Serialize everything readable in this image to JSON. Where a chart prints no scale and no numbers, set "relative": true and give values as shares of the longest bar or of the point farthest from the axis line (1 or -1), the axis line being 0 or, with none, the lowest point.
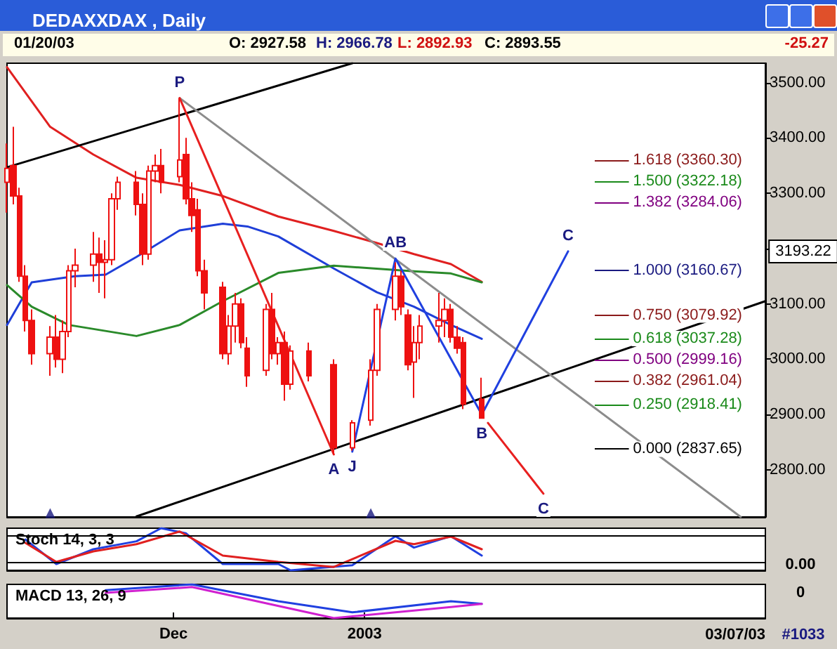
{
  "chart_data": [
    {
      "type": "candlestick",
      "title": "DEDAXXDAX , Daily",
      "x": [
        "2002-11-04",
        "2002-11-05",
        "2002-11-06",
        "2002-11-07",
        "2002-11-08",
        "2002-11-11",
        "2002-11-12",
        "2002-11-13",
        "2002-11-14",
        "2002-11-15",
        "2002-11-18",
        "2002-11-19",
        "2002-11-20",
        "2002-11-21",
        "2002-11-22",
        "2002-11-25",
        "2002-11-26",
        "2002-11-27",
        "2002-11-28",
        "2002-11-29",
        "2002-12-02",
        "2002-12-03",
        "2002-12-04",
        "2002-12-05",
        "2002-12-06",
        "2002-12-09",
        "2002-12-10",
        "2002-12-11",
        "2002-12-12",
        "2002-12-13",
        "2002-12-16",
        "2002-12-17",
        "2002-12-18",
        "2002-12-19",
        "2002-12-20",
        "2002-12-23",
        "2002-12-27",
        "2002-12-30",
        "2003-01-02",
        "2003-01-03",
        "2003-01-06",
        "2003-01-07",
        "2003-01-08",
        "2003-01-09",
        "2003-01-10",
        "2003-01-13",
        "2003-01-14",
        "2003-01-15",
        "2003-01-16",
        "2003-01-17",
        "2003-01-20"
      ],
      "ohlc": [
        [
          3320,
          3390,
          3265,
          3345
        ],
        [
          3350,
          3420,
          3280,
          3295
        ],
        [
          3295,
          3310,
          3140,
          3150
        ],
        [
          3150,
          3170,
          3050,
          3070
        ],
        [
          3070,
          3090,
          2990,
          3010
        ],
        [
          3010,
          3060,
          2970,
          3040
        ],
        [
          3040,
          3080,
          2985,
          3000
        ],
        [
          3000,
          3070,
          2975,
          3050
        ],
        [
          3050,
          3170,
          3040,
          3160
        ],
        [
          3160,
          3200,
          3130,
          3170
        ],
        [
          3170,
          3230,
          3140,
          3190
        ],
        [
          3190,
          3220,
          3120,
          3175
        ],
        [
          3175,
          3215,
          3110,
          3180
        ],
        [
          3180,
          3300,
          3170,
          3290
        ],
        [
          3290,
          3330,
          3270,
          3320
        ],
        [
          3320,
          3340,
          3260,
          3280
        ],
        [
          3280,
          3300,
          3170,
          3190
        ],
        [
          3190,
          3350,
          3180,
          3340
        ],
        [
          3340,
          3370,
          3320,
          3350
        ],
        [
          3350,
          3380,
          3300,
          3320
        ],
        [
          3330,
          3472,
          3320,
          3360
        ],
        [
          3370,
          3400,
          3280,
          3290
        ],
        [
          3290,
          3320,
          3230,
          3260
        ],
        [
          3270,
          3290,
          3150,
          3160
        ],
        [
          3160,
          3180,
          3090,
          3120
        ],
        [
          3130,
          3140,
          3000,
          3010
        ],
        [
          3010,
          3080,
          2990,
          3060
        ],
        [
          3060,
          3120,
          3030,
          3100
        ],
        [
          3100,
          3110,
          3020,
          3030
        ],
        [
          3020,
          3040,
          2950,
          2970
        ],
        [
          2980,
          3100,
          2970,
          3090
        ],
        [
          3090,
          3120,
          3000,
          3010
        ],
        [
          3010,
          3040,
          2990,
          3030
        ],
        [
          3030,
          3050,
          2925,
          2955
        ],
        [
          2955,
          3025,
          2945,
          3015
        ],
        [
          3015,
          3030,
          2960,
          2970
        ],
        [
          2990,
          3000,
          2828,
          2840
        ],
        [
          2840,
          2890,
          2835,
          2885
        ],
        [
          2890,
          3000,
          2880,
          2980
        ],
        [
          2980,
          3100,
          2970,
          3090
        ],
        [
          3090,
          3175,
          3070,
          3150
        ],
        [
          3150,
          3160,
          3080,
          3095
        ],
        [
          3080,
          3090,
          2980,
          2990
        ],
        [
          2995,
          3060,
          2930,
          3030
        ],
        [
          3030,
          3080,
          3000,
          3060
        ],
        [
          3060,
          3120,
          3030,
          3070
        ],
        [
          3070,
          3110,
          3040,
          3090
        ],
        [
          3090,
          3100,
          3030,
          3040
        ],
        [
          3040,
          3060,
          3010,
          3020
        ],
        [
          3030,
          3040,
          2910,
          2919
        ],
        [
          2927.58,
          2966.78,
          2892.93,
          2893.55
        ]
      ],
      "color": "#ee1111",
      "series": [
        {
          "type": "line",
          "color": "#e02020",
          "x": [
            "2002-11-04",
            "2002-11-11",
            "2002-11-18",
            "2002-11-25",
            "2002-12-02",
            "2002-12-09",
            "2002-12-18",
            "2002-12-27",
            "2003-01-03",
            "2003-01-09",
            "2003-01-15",
            "2003-01-20"
          ],
          "values": [
            3528,
            3420,
            3370,
            3328,
            3315,
            3295,
            3258,
            3232,
            3210,
            3190,
            3172,
            3140
          ]
        },
        {
          "type": "line",
          "color": "#1f3fd8",
          "x": [
            "2002-11-04",
            "2002-11-08",
            "2002-11-15",
            "2002-11-20",
            "2002-11-25",
            "2002-12-02",
            "2002-12-09",
            "2002-12-13",
            "2002-12-18",
            "2002-12-27",
            "2003-01-03",
            "2003-01-09",
            "2003-01-15",
            "2003-01-20"
          ],
          "values": [
            3062,
            3139,
            3150,
            3153,
            3185,
            3233,
            3245,
            3240,
            3222,
            3164,
            3121,
            3095,
            3062,
            3037
          ]
        },
        {
          "type": "line",
          "color": "#2a8a2a",
          "x": [
            "2002-11-04",
            "2002-11-08",
            "2002-11-14",
            "2002-11-25",
            "2002-12-02",
            "2002-12-09",
            "2002-12-18",
            "2002-12-27",
            "2003-01-09",
            "2003-01-15",
            "2003-01-20"
          ],
          "values": [
            3134,
            3095,
            3062,
            3042,
            3062,
            3105,
            3156,
            3169,
            3159,
            3155,
            3139
          ]
        },
        {
          "type": "line",
          "color": "#000000",
          "x": [
            "2002-11-04",
            "2002-12-30"
          ],
          "values": [
            3347,
            3535
          ]
        },
        {
          "type": "line",
          "color": "#000000",
          "x": [
            "2002-11-25",
            "2003-03-07"
          ],
          "values": [
            2716,
            3105
          ]
        },
        {
          "type": "line",
          "color": "#8c8c8c",
          "x": [
            "2002-12-02",
            "2003-03-03"
          ],
          "values": [
            3472,
            2715
          ]
        },
        {
          "type": "line",
          "color": "#e82020",
          "x": [
            "2002-12-02",
            "2002-12-27"
          ],
          "values": [
            3472,
            2828
          ]
        },
        {
          "type": "line",
          "color": "#e82020",
          "x": [
            "2003-01-21",
            "2003-01-30"
          ],
          "values": [
            2885,
            2757
          ]
        },
        {
          "type": "line",
          "color": "#2040e0",
          "x": [
            "2002-12-30",
            "2003-01-06",
            "2003-01-20",
            "2003-02-03"
          ],
          "values": [
            2833,
            3182,
            2900,
            3195
          ]
        },
        {
          "type": "scatter",
          "marker": "triangle",
          "color": "#1a1a80",
          "x": [
            "2002-11-11",
            "2003-01-02"
          ],
          "values": [
            2722,
            2722
          ]
        }
      ],
      "xlim": [
        "2002-11-04",
        "2003-03-07"
      ],
      "ylim": [
        2715,
        3535
      ],
      "yticks": [
        {
          "value": 2800,
          "label": "2800.00"
        },
        {
          "value": 2900,
          "label": "2900.00"
        },
        {
          "value": 3000,
          "label": "3000.00"
        },
        {
          "value": 3100,
          "label": "3100.00"
        },
        {
          "value": 3200,
          "label": null
        },
        {
          "value": 3300,
          "label": "3300.00"
        },
        {
          "value": 3400,
          "label": "3400.00"
        },
        {
          "value": 3500,
          "label": "3500.00"
        }
      ],
      "tick_labels": "y",
      "ref_lines": [
        {
          "axis": "y",
          "value": 3360.3,
          "label": "1.618 (3360.30)",
          "color": "#8b1a1a"
        },
        {
          "axis": "y",
          "value": 3322.18,
          "label": "1.500 (3322.18)",
          "color": "#1a8a1a"
        },
        {
          "axis": "y",
          "value": 3284.06,
          "label": "1.382 (3284.06)",
          "color": "#800080"
        },
        {
          "axis": "y",
          "value": 3160.67,
          "label": "1.000 (3160.67)",
          "color": "#1a1a80"
        },
        {
          "axis": "y",
          "value": 3079.92,
          "label": "0.750 (3079.92)",
          "color": "#8b1a1a"
        },
        {
          "axis": "y",
          "value": 3037.28,
          "label": "0.618 (3037.28)",
          "color": "#1a8a1a"
        },
        {
          "axis": "y",
          "value": 2999.16,
          "label": "0.500 (2999.16)",
          "color": "#800080"
        },
        {
          "axis": "y",
          "value": 2961.04,
          "label": "0.382 (2961.04)",
          "color": "#8b1a1a"
        },
        {
          "axis": "y",
          "value": 2918.41,
          "label": "0.250 (2918.41)",
          "color": "#1a8a1a"
        },
        {
          "axis": "y",
          "value": 2837.65,
          "label": "0.000 (2837.65)",
          "color": "#000000"
        }
      ],
      "annotations": [
        "01/20/03",
        "O: 2927.58",
        "H: 2966.78",
        "L: 2892.93",
        "C: 2893.55",
        "-25.27",
        "3193.22",
        {
          "text": "P",
          "x": "2002-12-02",
          "y": 3472
        },
        {
          "text": "A",
          "x": "2002-12-27",
          "y": 2828
        },
        {
          "text": "J",
          "x": "2002-12-30",
          "y": 2833
        },
        {
          "text": "AB",
          "x": "2003-01-06",
          "y": 3182
        },
        {
          "text": "B",
          "x": "2003-01-20",
          "y": 2893
        },
        {
          "text": "C",
          "x": "2003-02-03",
          "y": 3195
        },
        {
          "text": "C",
          "x": "2003-01-30",
          "y": 2757
        }
      ]
    },
    {
      "type": "line",
      "title": "Stoch 14, 3, 3",
      "relative": true,
      "series": [
        {
          "color": "#2040e0",
          "x": [
            "2002-11-07",
            "2002-11-12",
            "2002-11-18",
            "2002-11-25",
            "2002-11-29",
            "2002-12-03",
            "2002-12-09",
            "2002-12-18",
            "2002-12-20",
            "2002-12-30",
            "2003-01-06",
            "2003-01-09",
            "2003-01-15",
            "2003-01-20"
          ],
          "values": [
            0.73,
            0.15,
            0.5,
            0.69,
            1,
            0.88,
            0.15,
            0.15,
            0,
            0.12,
            0.81,
            0.54,
            0.81,
            0.35
          ]
        },
        {
          "color": "#e02020",
          "x": [
            "2002-11-07",
            "2002-11-12",
            "2002-11-18",
            "2002-11-25",
            "2002-12-02",
            "2002-12-09",
            "2002-12-18",
            "2002-12-27",
            "2003-01-06",
            "2003-01-09",
            "2003-01-15",
            "2003-01-20"
          ],
          "values": [
            0.65,
            0.2,
            0.45,
            0.62,
            0.92,
            0.35,
            0.2,
            0.08,
            0.7,
            0.62,
            0.8,
            0.5
          ]
        }
      ],
      "xlim": [
        "2002-11-04",
        "2003-03-07"
      ],
      "tick_labels": false,
      "ref_lines": [
        {
          "axis": "y",
          "value": 0.81,
          "color": "#000000"
        },
        {
          "axis": "y",
          "value": 0.19,
          "color": "#000000"
        }
      ],
      "annotations": [
        "0.00"
      ]
    },
    {
      "type": "line",
      "title": "MACD 13, 26, 9",
      "relative": true,
      "series": [
        {
          "color": "#2040e0",
          "x": [
            "2002-11-20",
            "2002-12-04",
            "2002-12-18",
            "2002-12-30",
            "2003-01-15",
            "2003-01-20"
          ],
          "values": [
            0.83,
            1,
            0.5,
            0.17,
            0.5,
            0.42
          ]
        },
        {
          "color": "#d020d0",
          "x": [
            "2002-11-20",
            "2002-12-04",
            "2002-12-27",
            "2003-01-15",
            "2003-01-20"
          ],
          "values": [
            0.75,
            0.92,
            0,
            0.33,
            0.42
          ]
        }
      ],
      "xlim": [
        "2002-11-04",
        "2003-03-07"
      ],
      "xticks": [
        {
          "value": "2002-12-01",
          "label": "Dec"
        },
        {
          "value": "2003-01-01",
          "label": "2003"
        }
      ],
      "tick_labels": "x",
      "annotations": [
        "0",
        "03/07/03",
        "#1033"
      ]
    }
  ]
}
